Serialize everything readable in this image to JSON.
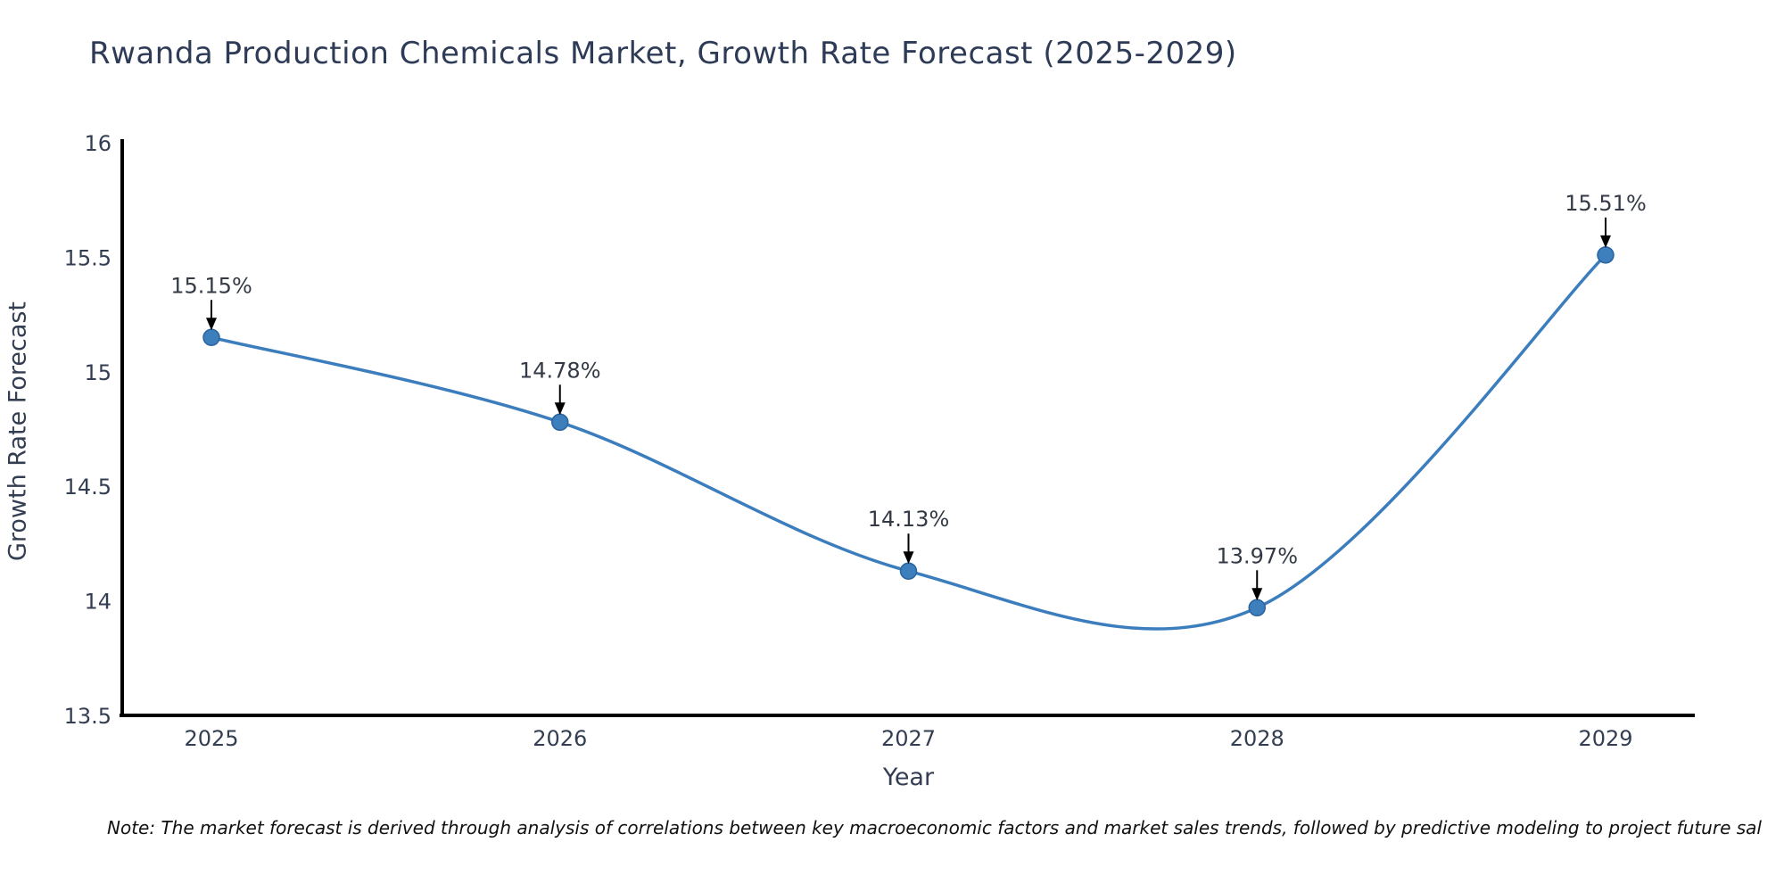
{
  "title": "Rwanda Production Chemicals Market, Growth Rate Forecast (2025-2029)",
  "note": "Note: The market forecast is derived through analysis of correlations between key macroeconomic factors and market sales trends, followed by predictive modeling to project future sal",
  "chart_data": {
    "type": "line",
    "title": "Rwanda Production Chemicals Market, Growth Rate Forecast (2025-2029)",
    "x": [
      2025,
      2026,
      2027,
      2028,
      2029
    ],
    "xtick_labels": [
      "2025",
      "2026",
      "2027",
      "2028",
      "2029"
    ],
    "values": [
      15.15,
      14.78,
      14.13,
      13.97,
      15.51
    ],
    "point_labels": [
      "15.15%",
      "14.78%",
      "14.13%",
      "13.97%",
      "15.51%"
    ],
    "xlabel": "Year",
    "ylabel": "Growth Rate Forecast",
    "ylim": [
      13.5,
      16
    ],
    "yticks": [
      13.5,
      14,
      14.5,
      15,
      15.5,
      16
    ],
    "ytick_labels": [
      "13.5",
      "14",
      "14.5",
      "15",
      "15.5",
      "16"
    ],
    "curve": "spline",
    "grid": false,
    "legend": null,
    "annotations_have_arrows": true
  },
  "colors": {
    "line": "#3b7dbd",
    "marker_fill": "#3d7ebd",
    "marker_edge": "#2a649e",
    "axis_spine": "#000000",
    "title_text": "#2e3b57",
    "tick_text": "#333e52",
    "axis_label_text": "#333e52",
    "annotation_text": "#333a45",
    "arrow": "#000000",
    "note_text": "#111111",
    "background": "#ffffff"
  }
}
